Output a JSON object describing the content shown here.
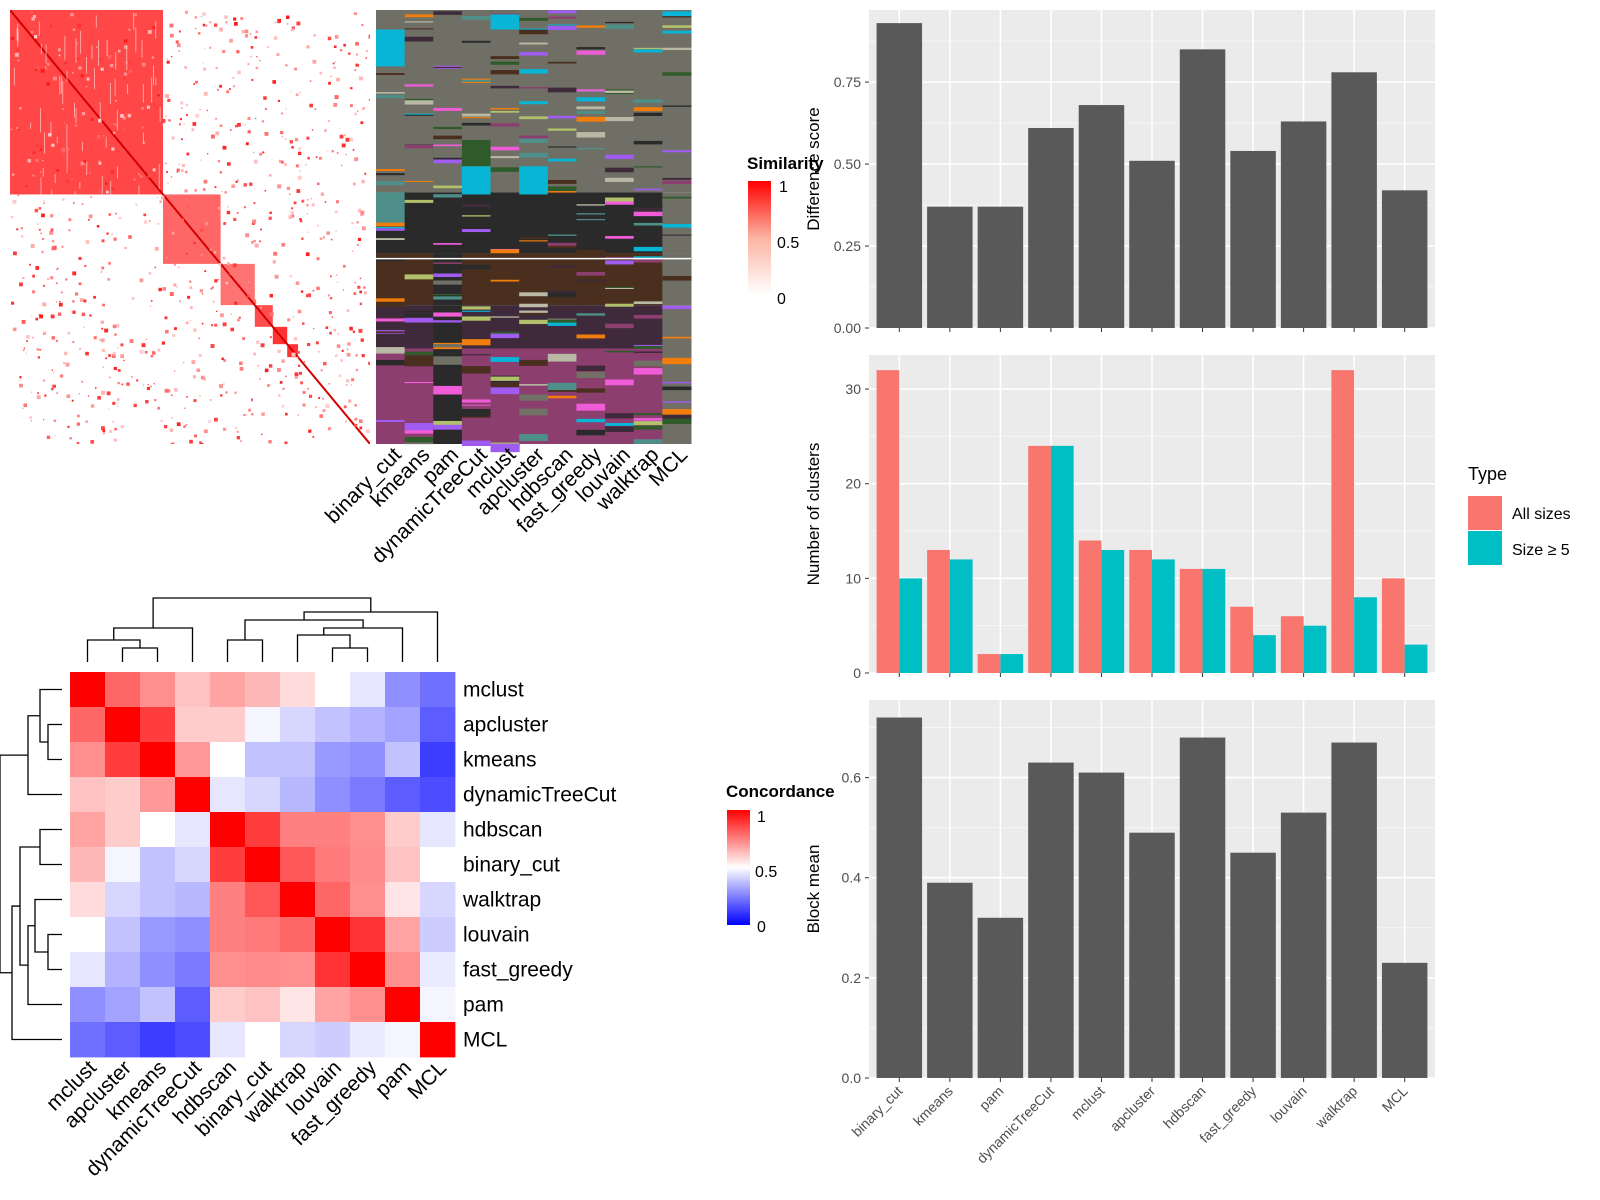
{
  "chart_data": [
    {
      "type": "heatmap",
      "id": "similarity-heatmap",
      "description_scale": "similarity matrix over genes ordered by clustering; strong block structure",
      "legend": {
        "title": "Similarity",
        "ticks": [
          "1",
          "0.5",
          "0"
        ]
      },
      "annotation_columns": [
        "binary_cut",
        "kmeans",
        "pam",
        "dynamicTreeCut",
        "mclust",
        "apcluster",
        "hdbscan",
        "fast_greedy",
        "louvain",
        "walktrap",
        "MCL"
      ],
      "blocks": [
        {
          "start": 0.0,
          "end": 0.425,
          "level": 0.72
        },
        {
          "start": 0.425,
          "end": 0.585,
          "level": 0.6
        },
        {
          "start": 0.585,
          "end": 0.68,
          "level": 0.55
        },
        {
          "start": 0.68,
          "end": 0.73,
          "level": 0.7
        },
        {
          "start": 0.73,
          "end": 0.77,
          "level": 0.8
        },
        {
          "start": 0.77,
          "end": 0.8,
          "level": 0.8
        }
      ]
    },
    {
      "type": "heatmap",
      "id": "concordance-heatmap",
      "legend": {
        "title": "Concordance",
        "ticks": [
          "1",
          "0.5",
          "0"
        ]
      },
      "rows": [
        "mclust",
        "apcluster",
        "kmeans",
        "dynamicTreeCut",
        "hdbscan",
        "binary_cut",
        "walktrap",
        "louvain",
        "fast_greedy",
        "pam",
        "MCL"
      ],
      "columns": [
        "mclust",
        "apcluster",
        "kmeans",
        "dynamicTreeCut",
        "hdbscan",
        "binary_cut",
        "walktrap",
        "louvain",
        "fast_greedy",
        "pam",
        "MCL"
      ],
      "values": [
        [
          1.0,
          0.8,
          0.72,
          0.62,
          0.68,
          0.64,
          0.57,
          0.5,
          0.45,
          0.28,
          0.22
        ],
        [
          0.8,
          1.0,
          0.88,
          0.6,
          0.6,
          0.48,
          0.42,
          0.38,
          0.35,
          0.32,
          0.18
        ],
        [
          0.72,
          0.88,
          1.0,
          0.7,
          0.5,
          0.38,
          0.38,
          0.3,
          0.28,
          0.38,
          0.12
        ],
        [
          0.62,
          0.6,
          0.7,
          1.0,
          0.45,
          0.42,
          0.36,
          0.28,
          0.24,
          0.18,
          0.15
        ],
        [
          0.68,
          0.6,
          0.5,
          0.45,
          1.0,
          0.88,
          0.75,
          0.75,
          0.72,
          0.6,
          0.45
        ],
        [
          0.64,
          0.48,
          0.38,
          0.42,
          0.88,
          1.0,
          0.83,
          0.76,
          0.73,
          0.62,
          0.5
        ],
        [
          0.57,
          0.42,
          0.38,
          0.36,
          0.75,
          0.83,
          1.0,
          0.8,
          0.72,
          0.55,
          0.42
        ],
        [
          0.5,
          0.38,
          0.3,
          0.28,
          0.75,
          0.76,
          0.8,
          1.0,
          0.9,
          0.68,
          0.4
        ],
        [
          0.45,
          0.35,
          0.28,
          0.24,
          0.72,
          0.73,
          0.72,
          0.9,
          1.0,
          0.72,
          0.46
        ],
        [
          0.28,
          0.32,
          0.38,
          0.18,
          0.6,
          0.62,
          0.55,
          0.68,
          0.72,
          1.0,
          0.48
        ],
        [
          0.22,
          0.18,
          0.12,
          0.15,
          0.45,
          0.5,
          0.42,
          0.4,
          0.46,
          0.48,
          1.0
        ]
      ]
    },
    {
      "type": "bar",
      "id": "difference-score",
      "categories": [
        "binary_cut",
        "kmeans",
        "pam",
        "dynamicTreeCut",
        "mclust",
        "apcluster",
        "hdbscan",
        "fast_greedy",
        "louvain",
        "walktrap",
        "MCL"
      ],
      "values": [
        0.93,
        0.37,
        0.37,
        0.61,
        0.68,
        0.51,
        0.85,
        0.54,
        0.63,
        0.78,
        0.42
      ],
      "ylabel": "Difference score",
      "ylim": [
        0,
        0.97
      ],
      "yticks": [
        0,
        0.25,
        0.5,
        0.75
      ],
      "ytick_labels": [
        "0.00",
        "0.25",
        "0.50",
        "0.75"
      ],
      "color": "#595959",
      "grid": true
    },
    {
      "type": "bar",
      "id": "number-of-clusters",
      "categories": [
        "binary_cut",
        "kmeans",
        "pam",
        "dynamicTreeCut",
        "mclust",
        "apcluster",
        "hdbscan",
        "fast_greedy",
        "louvain",
        "walktrap",
        "MCL"
      ],
      "series": [
        {
          "name": "All sizes",
          "color": "#F8766D",
          "values": [
            32,
            13,
            2,
            24,
            14,
            13,
            11,
            7,
            6,
            32,
            10
          ]
        },
        {
          "name": "Size ≥ 5",
          "color": "#00BFC4",
          "values": [
            10,
            12,
            2,
            24,
            13,
            12,
            11,
            4,
            5,
            8,
            3
          ]
        }
      ],
      "ylabel": "Number of clusters",
      "ylim": [
        0,
        33.6
      ],
      "yticks": [
        0,
        10,
        20,
        30
      ],
      "ytick_labels": [
        "0",
        "10",
        "20",
        "30"
      ],
      "legend": {
        "title": "Type",
        "position": "right"
      },
      "grid": true
    },
    {
      "type": "bar",
      "id": "block-mean",
      "categories": [
        "binary_cut",
        "kmeans",
        "pam",
        "dynamicTreeCut",
        "mclust",
        "apcluster",
        "hdbscan",
        "fast_greedy",
        "louvain",
        "walktrap",
        "MCL"
      ],
      "values": [
        0.72,
        0.39,
        0.32,
        0.63,
        0.61,
        0.49,
        0.68,
        0.45,
        0.53,
        0.67,
        0.23
      ],
      "ylabel": "Block mean",
      "ylim": [
        0,
        0.755
      ],
      "yticks": [
        0,
        0.2,
        0.4,
        0.6
      ],
      "ytick_labels": [
        "0.0",
        "0.2",
        "0.4",
        "0.6"
      ],
      "color": "#595959",
      "grid": true
    }
  ]
}
